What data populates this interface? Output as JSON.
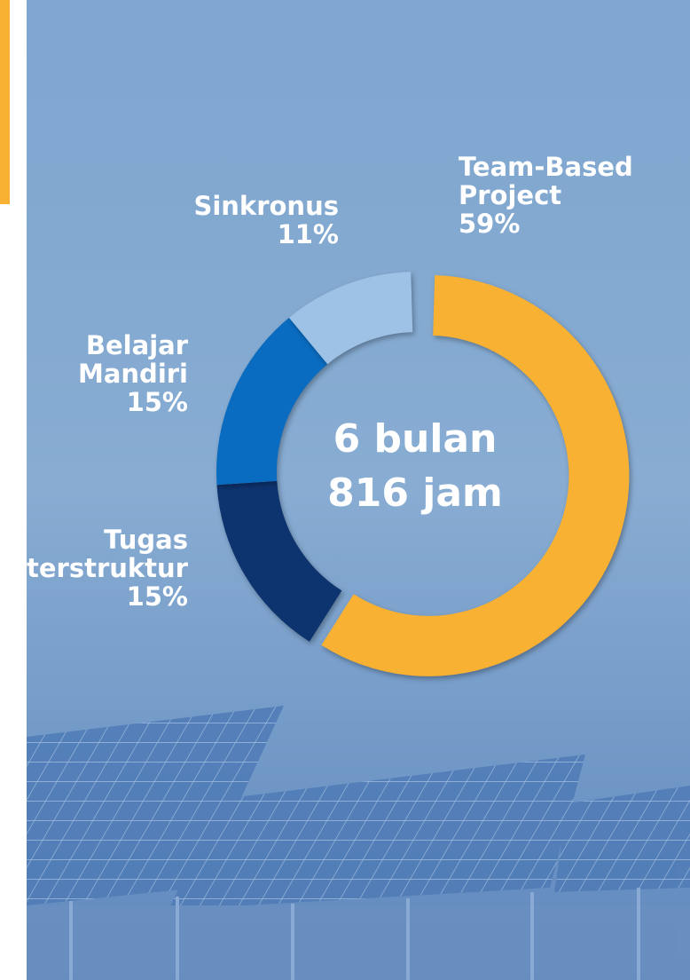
{
  "chart_data": {
    "type": "donut",
    "categories": [
      "Team-Based Project",
      "Tugas terstruktur",
      "Belajar Mandiri",
      "Sinkronus"
    ],
    "values": [
      59,
      15,
      15,
      11
    ],
    "value_labels": [
      "59%",
      "15%",
      "15%",
      "11%"
    ],
    "colors": [
      "#f8b133",
      "#0e3470",
      "#0a6cc0",
      "#9dc2e6"
    ],
    "center_text": [
      "6 bulan",
      "816 jam"
    ]
  }
}
